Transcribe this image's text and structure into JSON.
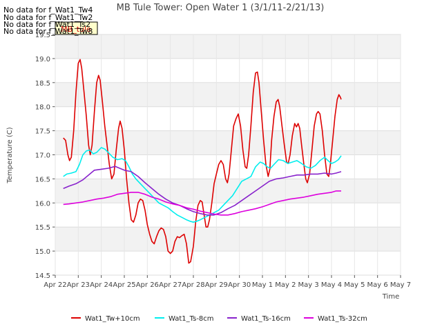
{
  "chart_data": {
    "type": "line",
    "title": "MB Tule Tower: Open Water 1 (3/1/11-2/21/13)",
    "xlabel": "Time",
    "ylabel": "Temperature (C)",
    "ylim": [
      14.5,
      19.5
    ],
    "yticks": [
      "14.5",
      "15.0",
      "15.5",
      "16.0",
      "16.5",
      "17.0",
      "17.5",
      "18.0",
      "18.5",
      "19.0",
      "19.5"
    ],
    "xlim": [
      0,
      15
    ],
    "xtick_labels": [
      "Apr 22",
      "Apr 23",
      "Apr 24",
      "Apr 25",
      "Apr 26",
      "Apr 27",
      "Apr 28",
      "Apr 29",
      "Apr 30",
      "May 1",
      "May 2",
      "May 3",
      "May 4",
      "May 5",
      "May 6",
      "May 7"
    ],
    "grid": true,
    "legend_position": "bottom",
    "no_data_messages": [
      "No data for f_Wat1_Tw4",
      "No data for f_Wat1_Tw2",
      "No data for f_Wat1_Ts2",
      "No data for f_Wat1_Tw8"
    ],
    "tooltip_label": "MB_tule",
    "series": [
      {
        "name": "Wat1_Tw+10cm",
        "color": "#dd0000",
        "points": [
          [
            0.35,
            17.35
          ],
          [
            0.45,
            17.3
          ],
          [
            0.55,
            17.0
          ],
          [
            0.62,
            16.88
          ],
          [
            0.7,
            16.95
          ],
          [
            0.8,
            17.5
          ],
          [
            0.9,
            18.3
          ],
          [
            1.0,
            18.9
          ],
          [
            1.08,
            18.98
          ],
          [
            1.15,
            18.8
          ],
          [
            1.25,
            18.3
          ],
          [
            1.35,
            17.8
          ],
          [
            1.45,
            17.2
          ],
          [
            1.52,
            17.0
          ],
          [
            1.6,
            17.2
          ],
          [
            1.7,
            17.9
          ],
          [
            1.8,
            18.5
          ],
          [
            1.88,
            18.65
          ],
          [
            1.95,
            18.55
          ],
          [
            2.05,
            18.1
          ],
          [
            2.15,
            17.6
          ],
          [
            2.25,
            17.2
          ],
          [
            2.35,
            16.8
          ],
          [
            2.45,
            16.5
          ],
          [
            2.55,
            16.6
          ],
          [
            2.65,
            17.1
          ],
          [
            2.75,
            17.55
          ],
          [
            2.82,
            17.7
          ],
          [
            2.9,
            17.55
          ],
          [
            3.0,
            17.1
          ],
          [
            3.1,
            16.5
          ],
          [
            3.2,
            16.0
          ],
          [
            3.3,
            15.65
          ],
          [
            3.4,
            15.6
          ],
          [
            3.5,
            15.75
          ],
          [
            3.6,
            16.0
          ],
          [
            3.7,
            16.08
          ],
          [
            3.8,
            16.05
          ],
          [
            3.9,
            15.85
          ],
          [
            4.0,
            15.55
          ],
          [
            4.1,
            15.35
          ],
          [
            4.2,
            15.2
          ],
          [
            4.3,
            15.15
          ],
          [
            4.4,
            15.3
          ],
          [
            4.5,
            15.42
          ],
          [
            4.6,
            15.48
          ],
          [
            4.7,
            15.45
          ],
          [
            4.8,
            15.3
          ],
          [
            4.9,
            15.0
          ],
          [
            5.0,
            14.95
          ],
          [
            5.1,
            15.0
          ],
          [
            5.2,
            15.2
          ],
          [
            5.3,
            15.3
          ],
          [
            5.4,
            15.28
          ],
          [
            5.5,
            15.32
          ],
          [
            5.6,
            15.35
          ],
          [
            5.7,
            15.15
          ],
          [
            5.8,
            14.75
          ],
          [
            5.88,
            14.78
          ],
          [
            6.0,
            15.1
          ],
          [
            6.1,
            15.6
          ],
          [
            6.2,
            15.95
          ],
          [
            6.3,
            16.05
          ],
          [
            6.38,
            16.02
          ],
          [
            6.45,
            15.8
          ],
          [
            6.55,
            15.5
          ],
          [
            6.62,
            15.5
          ],
          [
            6.7,
            15.65
          ],
          [
            6.8,
            16.0
          ],
          [
            6.9,
            16.4
          ],
          [
            7.0,
            16.6
          ],
          [
            7.1,
            16.8
          ],
          [
            7.2,
            16.88
          ],
          [
            7.3,
            16.8
          ],
          [
            7.4,
            16.5
          ],
          [
            7.48,
            16.42
          ],
          [
            7.55,
            16.6
          ],
          [
            7.65,
            17.1
          ],
          [
            7.75,
            17.6
          ],
          [
            7.85,
            17.75
          ],
          [
            7.95,
            17.85
          ],
          [
            8.05,
            17.6
          ],
          [
            8.15,
            17.1
          ],
          [
            8.25,
            16.75
          ],
          [
            8.32,
            16.72
          ],
          [
            8.4,
            17.0
          ],
          [
            8.5,
            17.6
          ],
          [
            8.6,
            18.3
          ],
          [
            8.7,
            18.7
          ],
          [
            8.78,
            18.72
          ],
          [
            8.85,
            18.5
          ],
          [
            8.95,
            17.9
          ],
          [
            9.05,
            17.3
          ],
          [
            9.15,
            16.8
          ],
          [
            9.25,
            16.55
          ],
          [
            9.32,
            16.7
          ],
          [
            9.4,
            17.3
          ],
          [
            9.5,
            17.8
          ],
          [
            9.6,
            18.1
          ],
          [
            9.68,
            18.15
          ],
          [
            9.75,
            18.0
          ],
          [
            9.85,
            17.6
          ],
          [
            9.95,
            17.2
          ],
          [
            10.05,
            16.85
          ],
          [
            10.12,
            16.82
          ],
          [
            10.2,
            17.0
          ],
          [
            10.3,
            17.4
          ],
          [
            10.4,
            17.65
          ],
          [
            10.48,
            17.58
          ],
          [
            10.55,
            17.65
          ],
          [
            10.62,
            17.55
          ],
          [
            10.7,
            17.2
          ],
          [
            10.8,
            16.8
          ],
          [
            10.88,
            16.5
          ],
          [
            10.95,
            16.42
          ],
          [
            11.05,
            16.6
          ],
          [
            11.15,
            17.1
          ],
          [
            11.25,
            17.6
          ],
          [
            11.35,
            17.85
          ],
          [
            11.42,
            17.9
          ],
          [
            11.5,
            17.85
          ],
          [
            11.6,
            17.5
          ],
          [
            11.7,
            17.0
          ],
          [
            11.8,
            16.6
          ],
          [
            11.88,
            16.55
          ],
          [
            11.95,
            16.8
          ],
          [
            12.05,
            17.3
          ],
          [
            12.15,
            17.8
          ],
          [
            12.25,
            18.15
          ],
          [
            12.32,
            18.25
          ],
          [
            12.38,
            18.2
          ],
          [
            12.42,
            18.15
          ]
        ]
      },
      {
        "name": "Wat1_Ts-8cm",
        "color": "#00eeee",
        "points": [
          [
            0.35,
            16.55
          ],
          [
            0.5,
            16.6
          ],
          [
            0.7,
            16.62
          ],
          [
            0.9,
            16.65
          ],
          [
            1.05,
            16.8
          ],
          [
            1.2,
            17.0
          ],
          [
            1.35,
            17.08
          ],
          [
            1.5,
            17.1
          ],
          [
            1.65,
            17.02
          ],
          [
            1.8,
            17.05
          ],
          [
            2.0,
            17.15
          ],
          [
            2.15,
            17.12
          ],
          [
            2.3,
            17.05
          ],
          [
            2.5,
            16.95
          ],
          [
            2.7,
            16.9
          ],
          [
            2.9,
            16.92
          ],
          [
            3.05,
            16.88
          ],
          [
            3.2,
            16.75
          ],
          [
            3.35,
            16.6
          ],
          [
            3.5,
            16.5
          ],
          [
            3.7,
            16.4
          ],
          [
            3.9,
            16.3
          ],
          [
            4.1,
            16.2
          ],
          [
            4.3,
            16.1
          ],
          [
            4.5,
            16.0
          ],
          [
            4.7,
            15.95
          ],
          [
            4.9,
            15.9
          ],
          [
            5.1,
            15.82
          ],
          [
            5.3,
            15.75
          ],
          [
            5.5,
            15.7
          ],
          [
            5.7,
            15.65
          ],
          [
            5.85,
            15.62
          ],
          [
            6.0,
            15.6
          ],
          [
            6.15,
            15.62
          ],
          [
            6.3,
            15.65
          ],
          [
            6.5,
            15.7
          ],
          [
            6.7,
            15.75
          ],
          [
            6.9,
            15.8
          ],
          [
            7.1,
            15.85
          ],
          [
            7.3,
            15.95
          ],
          [
            7.5,
            16.05
          ],
          [
            7.7,
            16.15
          ],
          [
            7.9,
            16.3
          ],
          [
            8.1,
            16.45
          ],
          [
            8.3,
            16.5
          ],
          [
            8.5,
            16.55
          ],
          [
            8.7,
            16.75
          ],
          [
            8.9,
            16.85
          ],
          [
            9.05,
            16.82
          ],
          [
            9.2,
            16.75
          ],
          [
            9.35,
            16.72
          ],
          [
            9.5,
            16.8
          ],
          [
            9.7,
            16.9
          ],
          [
            9.9,
            16.88
          ],
          [
            10.1,
            16.82
          ],
          [
            10.3,
            16.85
          ],
          [
            10.5,
            16.88
          ],
          [
            10.7,
            16.82
          ],
          [
            10.9,
            16.75
          ],
          [
            11.1,
            16.72
          ],
          [
            11.3,
            16.78
          ],
          [
            11.5,
            16.88
          ],
          [
            11.7,
            16.95
          ],
          [
            11.85,
            16.88
          ],
          [
            12.0,
            16.82
          ],
          [
            12.15,
            16.85
          ],
          [
            12.3,
            16.9
          ],
          [
            12.42,
            16.98
          ]
        ]
      },
      {
        "name": "Wat1_Ts-16cm",
        "color": "#8822cc",
        "points": [
          [
            0.35,
            16.3
          ],
          [
            0.6,
            16.35
          ],
          [
            0.9,
            16.4
          ],
          [
            1.2,
            16.48
          ],
          [
            1.5,
            16.6
          ],
          [
            1.7,
            16.68
          ],
          [
            2.0,
            16.7
          ],
          [
            2.3,
            16.72
          ],
          [
            2.6,
            16.76
          ],
          [
            2.8,
            16.72
          ],
          [
            3.0,
            16.68
          ],
          [
            3.3,
            16.65
          ],
          [
            3.6,
            16.55
          ],
          [
            3.9,
            16.42
          ],
          [
            4.2,
            16.3
          ],
          [
            4.5,
            16.18
          ],
          [
            4.8,
            16.08
          ],
          [
            5.1,
            16.0
          ],
          [
            5.4,
            15.95
          ],
          [
            5.7,
            15.88
          ],
          [
            6.0,
            15.82
          ],
          [
            6.3,
            15.78
          ],
          [
            6.6,
            15.75
          ],
          [
            6.9,
            15.75
          ],
          [
            7.2,
            15.8
          ],
          [
            7.5,
            15.88
          ],
          [
            7.8,
            15.95
          ],
          [
            8.1,
            16.05
          ],
          [
            8.4,
            16.15
          ],
          [
            8.7,
            16.25
          ],
          [
            9.0,
            16.35
          ],
          [
            9.3,
            16.45
          ],
          [
            9.6,
            16.5
          ],
          [
            9.9,
            16.52
          ],
          [
            10.2,
            16.55
          ],
          [
            10.5,
            16.58
          ],
          [
            10.8,
            16.58
          ],
          [
            11.1,
            16.6
          ],
          [
            11.4,
            16.6
          ],
          [
            11.7,
            16.62
          ],
          [
            12.0,
            16.6
          ],
          [
            12.2,
            16.62
          ],
          [
            12.42,
            16.65
          ]
        ]
      },
      {
        "name": "Wat1_Ts-32cm",
        "color": "#dd00dd",
        "points": [
          [
            0.35,
            15.97
          ],
          [
            0.6,
            15.98
          ],
          [
            0.9,
            16.0
          ],
          [
            1.2,
            16.02
          ],
          [
            1.5,
            16.05
          ],
          [
            1.8,
            16.08
          ],
          [
            2.1,
            16.1
          ],
          [
            2.4,
            16.13
          ],
          [
            2.7,
            16.18
          ],
          [
            3.0,
            16.2
          ],
          [
            3.3,
            16.22
          ],
          [
            3.6,
            16.22
          ],
          [
            3.9,
            16.18
          ],
          [
            4.2,
            16.12
          ],
          [
            4.5,
            16.08
          ],
          [
            4.8,
            16.02
          ],
          [
            5.1,
            15.98
          ],
          [
            5.4,
            15.95
          ],
          [
            5.7,
            15.9
          ],
          [
            6.0,
            15.87
          ],
          [
            6.3,
            15.83
          ],
          [
            6.6,
            15.8
          ],
          [
            6.9,
            15.77
          ],
          [
            7.2,
            15.75
          ],
          [
            7.5,
            15.75
          ],
          [
            7.8,
            15.78
          ],
          [
            8.1,
            15.82
          ],
          [
            8.4,
            15.85
          ],
          [
            8.7,
            15.88
          ],
          [
            9.0,
            15.92
          ],
          [
            9.3,
            15.97
          ],
          [
            9.6,
            16.02
          ],
          [
            9.9,
            16.05
          ],
          [
            10.2,
            16.08
          ],
          [
            10.5,
            16.1
          ],
          [
            10.8,
            16.12
          ],
          [
            11.1,
            16.15
          ],
          [
            11.4,
            16.18
          ],
          [
            11.7,
            16.2
          ],
          [
            12.0,
            16.22
          ],
          [
            12.2,
            16.25
          ],
          [
            12.42,
            16.25
          ]
        ]
      }
    ]
  }
}
